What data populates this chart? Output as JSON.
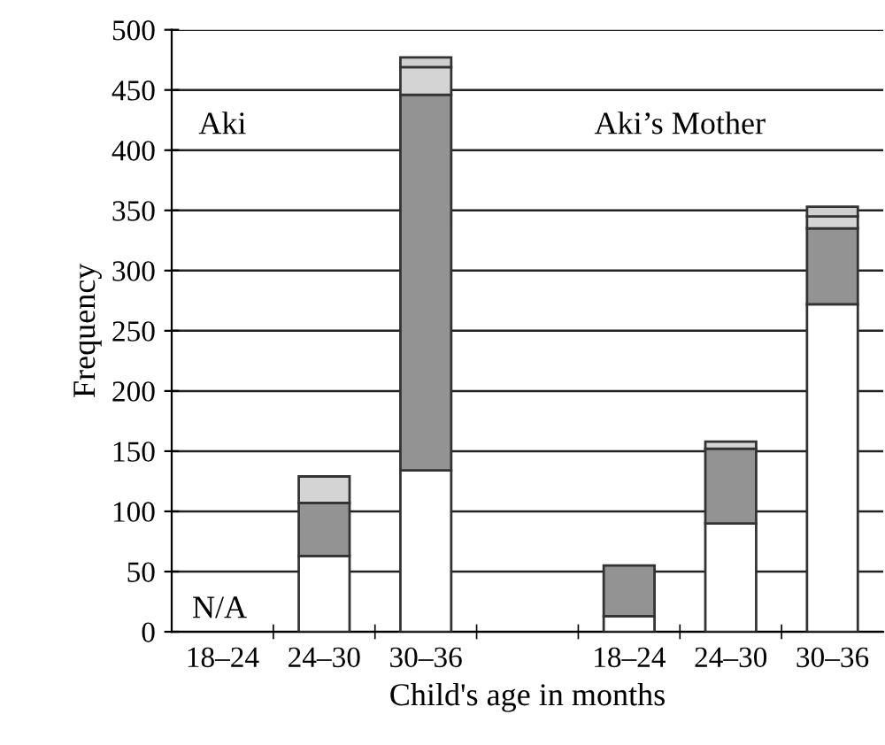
{
  "chart_data": {
    "type": "bar",
    "stacked": true,
    "ylabel": "Frequency",
    "xlabel": "Child's age in months",
    "categories": [
      "18–24",
      "24–30",
      "30–36",
      null,
      "18–24",
      "24–30",
      "30–36"
    ],
    "series": [
      {
        "color": "#ffffff",
        "values": [
          null,
          63,
          134,
          null,
          13,
          90,
          272
        ]
      },
      {
        "color": "#939393",
        "values": [
          null,
          44,
          312,
          null,
          42,
          62,
          63
        ]
      },
      {
        "color": "#d4d4d4",
        "values": [
          null,
          22,
          23,
          null,
          null,
          6,
          10
        ]
      },
      {
        "color": "#cfcfcf",
        "values": [
          null,
          null,
          8,
          null,
          null,
          null,
          8
        ]
      }
    ],
    "ylim": [
      0,
      500
    ],
    "yticks": [
      0,
      50,
      100,
      150,
      200,
      250,
      300,
      350,
      400,
      450,
      500
    ],
    "grid": "y",
    "annotations": [
      "Aki",
      "Aki’s Mother",
      "N/A"
    ]
  }
}
